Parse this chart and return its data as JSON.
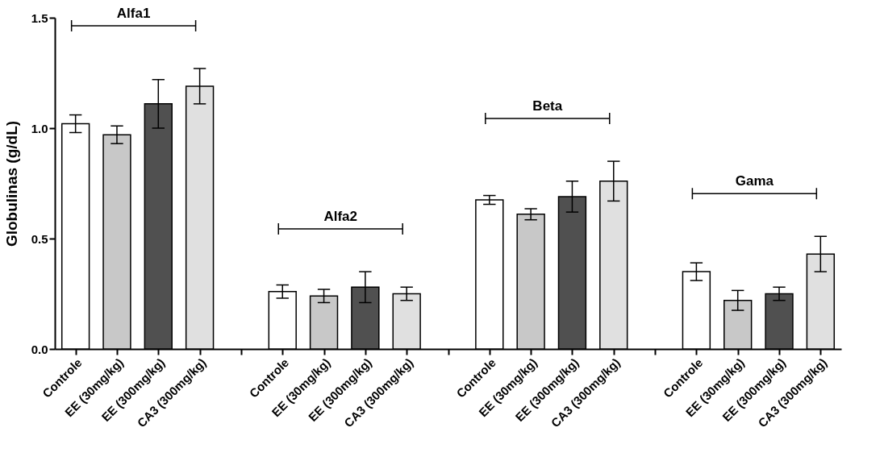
{
  "chart_data": {
    "type": "bar",
    "ylabel": "Globulinas (g/dL)",
    "categories": [
      "Controle",
      "EE (30mg/kg)",
      "EE (300mg/kg)",
      "CA3 (300mg/kg)",
      null,
      "Controle",
      "EE (30mg/kg)",
      "EE (300mg/kg)",
      "CA3 (300mg/kg)",
      null,
      "Controle",
      "EE (30mg/kg)",
      "EE (300mg/kg)",
      "CA3 (300mg/kg)",
      null,
      "Controle",
      "EE (30mg/kg)",
      "EE (300mg/kg)",
      "CA3 (300mg/kg)"
    ],
    "values": [
      1.02,
      0.97,
      1.11,
      1.19,
      null,
      0.26,
      0.24,
      0.28,
      0.25,
      null,
      0.675,
      0.61,
      0.69,
      0.76,
      null,
      0.35,
      0.22,
      0.25,
      0.43
    ],
    "errors": [
      0.04,
      0.04,
      0.11,
      0.08,
      null,
      0.03,
      0.03,
      0.07,
      0.03,
      null,
      0.02,
      0.025,
      0.07,
      0.09,
      null,
      0.04,
      0.045,
      0.03,
      0.08
    ],
    "colors": [
      "#ffffff",
      "#c8c8c8",
      "#505050",
      "#e0e0e0",
      null,
      "#ffffff",
      "#c8c8c8",
      "#505050",
      "#e0e0e0",
      null,
      "#ffffff",
      "#c8c8c8",
      "#505050",
      "#e0e0e0",
      null,
      "#ffffff",
      "#c8c8c8",
      "#505050",
      "#e0e0e0"
    ],
    "ylim": [
      0,
      1.5
    ],
    "yticks": [
      {
        "value": 0,
        "label": "0.0"
      },
      {
        "value": 0.5,
        "label": "0.5"
      },
      {
        "value": 1,
        "label": "1.0"
      },
      {
        "value": 1.5,
        "label": "1.5"
      }
    ],
    "annotations": [
      "Alfa1",
      "Alfa2",
      "Beta",
      "Gama"
    ]
  }
}
